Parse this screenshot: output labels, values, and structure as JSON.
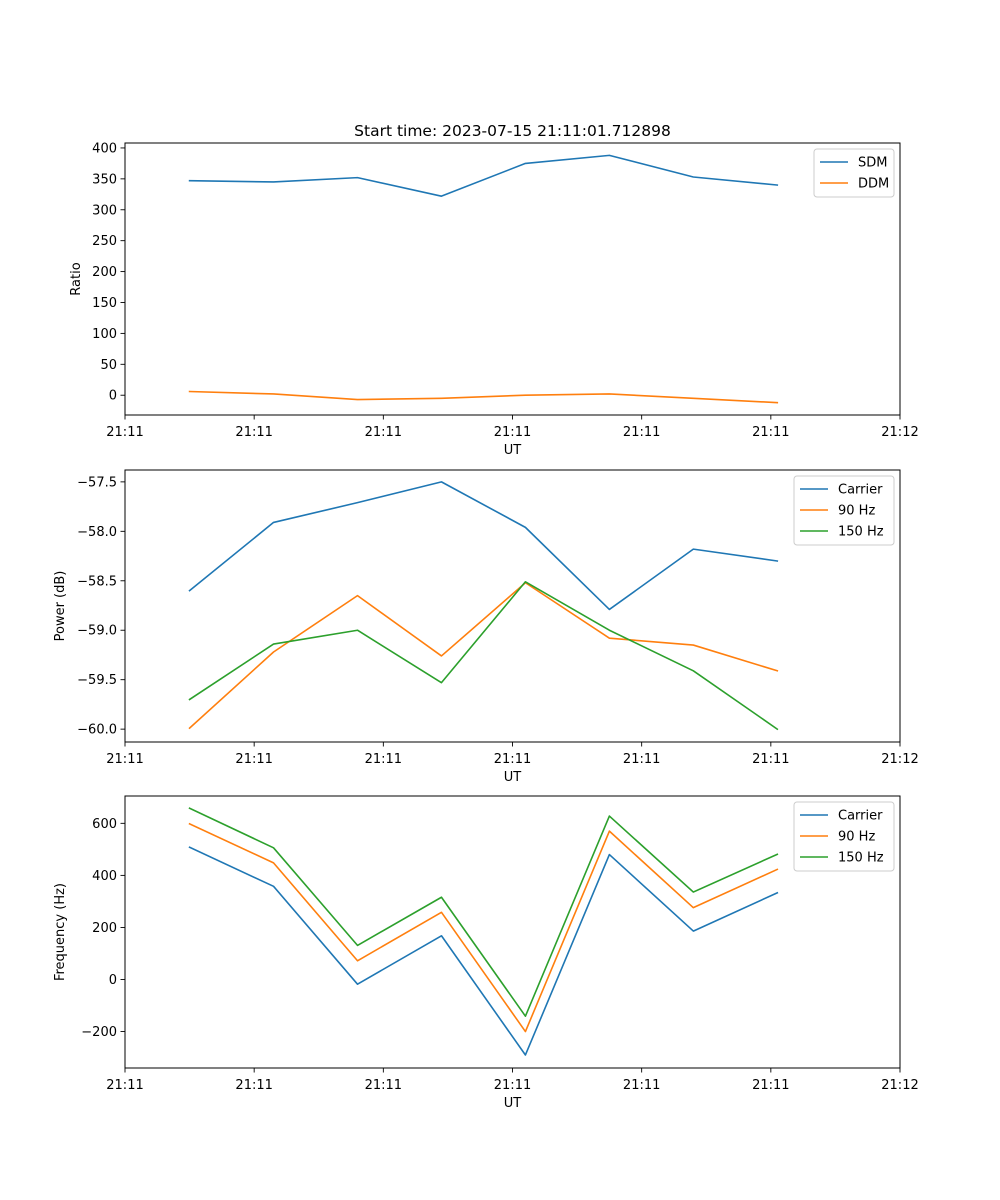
{
  "figure_title": "Start time: 2023-07-15 21:11:01.712898",
  "colors": {
    "blue": "#1f77b4",
    "orange": "#ff7f0e",
    "green": "#2ca02c"
  },
  "chart_data": [
    {
      "type": "line",
      "ylabel": "Ratio",
      "xlabel": "UT",
      "xlim": [
        0,
        18
      ],
      "x_ticks": [
        0,
        3,
        6,
        9,
        12,
        15,
        18
      ],
      "x_tick_labels": [
        "21:11",
        "21:11",
        "21:11",
        "21:11",
        "21:11",
        "21:11",
        "21:12"
      ],
      "x": [
        1.5,
        3.45,
        5.4,
        7.35,
        9.3,
        11.25,
        13.2,
        15.15
      ],
      "ylim": [
        -32,
        408
      ],
      "y_ticks": [
        0,
        50,
        100,
        150,
        200,
        250,
        300,
        350,
        400
      ],
      "y_tick_labels": [
        "0",
        "50",
        "100",
        "150",
        "200",
        "250",
        "300",
        "350",
        "400"
      ],
      "legend_position": "top-right",
      "series": [
        {
          "name": "SDM",
          "color": "#1f77b4",
          "values": [
            347,
            345,
            352,
            322,
            375,
            388,
            353,
            340
          ]
        },
        {
          "name": "DDM",
          "color": "#ff7f0e",
          "values": [
            6,
            2,
            -7,
            -5,
            0,
            2,
            -5,
            -12
          ]
        }
      ]
    },
    {
      "type": "line",
      "ylabel": "Power (dB)",
      "xlabel": "UT",
      "xlim": [
        0,
        18
      ],
      "x_ticks": [
        0,
        3,
        6,
        9,
        12,
        15,
        18
      ],
      "x_tick_labels": [
        "21:11",
        "21:11",
        "21:11",
        "21:11",
        "21:11",
        "21:11",
        "21:12"
      ],
      "x": [
        1.5,
        3.45,
        5.4,
        7.35,
        9.3,
        11.25,
        13.2,
        15.15
      ],
      "ylim": [
        -60.13,
        -57.38
      ],
      "y_ticks": [
        -60.0,
        -59.5,
        -59.0,
        -58.5,
        -58.0,
        -57.5
      ],
      "y_tick_labels": [
        "−60.0",
        "−59.5",
        "−59.0",
        "−58.5",
        "−58.0",
        "−57.5"
      ],
      "legend_position": "top-right",
      "series": [
        {
          "name": "Carrier",
          "color": "#1f77b4",
          "values": [
            -58.6,
            -57.91,
            -57.71,
            -57.5,
            -57.96,
            -58.79,
            -58.18,
            -58.3
          ]
        },
        {
          "name": "90 Hz",
          "color": "#ff7f0e",
          "values": [
            -59.99,
            -59.22,
            -58.65,
            -59.26,
            -58.52,
            -59.08,
            -59.15,
            -59.41
          ]
        },
        {
          "name": "150 Hz",
          "color": "#2ca02c",
          "values": [
            -59.7,
            -59.14,
            -59.0,
            -59.53,
            -58.51,
            -59.0,
            -59.41,
            -60.0
          ]
        }
      ]
    },
    {
      "type": "line",
      "ylabel": "Frequency (Hz)",
      "xlabel": "UT",
      "xlim": [
        0,
        18
      ],
      "x_ticks": [
        0,
        3,
        6,
        9,
        12,
        15,
        18
      ],
      "x_tick_labels": [
        "21:11",
        "21:11",
        "21:11",
        "21:11",
        "21:11",
        "21:11",
        "21:12"
      ],
      "x": [
        1.5,
        3.45,
        5.4,
        7.35,
        9.3,
        11.25,
        13.2,
        15.15
      ],
      "ylim": [
        -340,
        705
      ],
      "y_ticks": [
        -200,
        0,
        200,
        400,
        600
      ],
      "y_tick_labels": [
        "−200",
        "0",
        "200",
        "400",
        "600"
      ],
      "legend_position": "top-right",
      "series": [
        {
          "name": "Carrier",
          "color": "#1f77b4",
          "values": [
            508,
            358,
            -18,
            168,
            -290,
            480,
            186,
            333
          ]
        },
        {
          "name": "90 Hz",
          "color": "#ff7f0e",
          "values": [
            598,
            448,
            72,
            258,
            -200,
            570,
            276,
            423
          ]
        },
        {
          "name": "150 Hz",
          "color": "#2ca02c",
          "values": [
            658,
            506,
            131,
            316,
            -141,
            628,
            336,
            481
          ]
        }
      ]
    }
  ]
}
